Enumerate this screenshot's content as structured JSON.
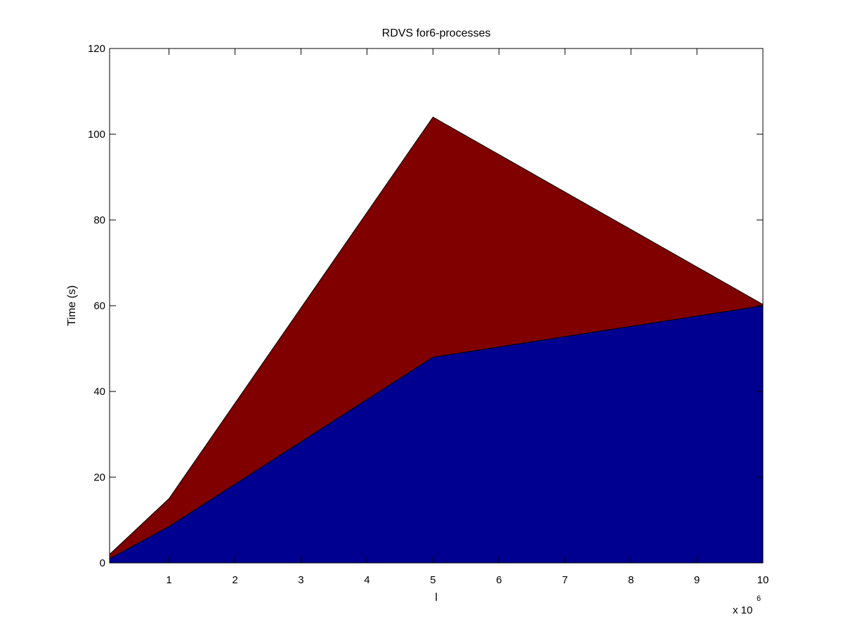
{
  "chart_data": {
    "type": "area",
    "stacked": true,
    "title": "RDVS for6-processes",
    "xlabel": "l",
    "ylabel": "Time (s)",
    "x_exponent_base": "x 10",
    "x_exponent_power": "6",
    "x": [
      0.1,
      1,
      5,
      10
    ],
    "xlim": [
      0.1,
      10
    ],
    "ylim": [
      0,
      120
    ],
    "x_ticks": [
      1,
      2,
      3,
      4,
      5,
      6,
      7,
      8,
      9,
      10
    ],
    "x_tick_labels": [
      "1",
      "2",
      "3",
      "4",
      "5",
      "6",
      "7",
      "8",
      "9",
      "10"
    ],
    "y_ticks": [
      0,
      20,
      40,
      60,
      80,
      100,
      120
    ],
    "y_tick_labels": [
      "0",
      "20",
      "40",
      "60",
      "80",
      "100",
      "120"
    ],
    "grid": false,
    "legend": "none",
    "series": [
      {
        "values": [
          1.0,
          8.5,
          48.0,
          60.0
        ],
        "color": "#000090"
      },
      {
        "values": [
          1.0,
          6.5,
          56.0,
          0.3
        ],
        "color": "#800000"
      }
    ]
  }
}
